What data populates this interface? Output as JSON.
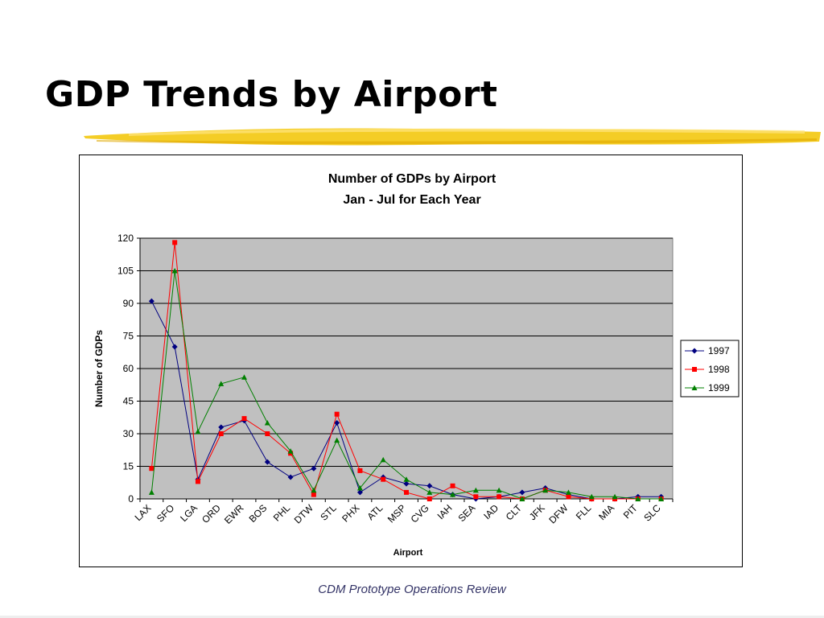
{
  "slide": {
    "title": "GDP Trends by Airport",
    "footer": "CDM Prototype Operations Review"
  },
  "colors": {
    "plot_bg": "#c0c0c0",
    "highlight": "#f2c400",
    "series": [
      "#000080",
      "#ff0000",
      "#008000"
    ]
  },
  "chart_data": {
    "type": "line",
    "title": "Number of GDPs by Airport",
    "subtitle": "Jan - Jul for Each Year",
    "xlabel": "Airport",
    "ylabel": "Number of GDPs",
    "ylim": [
      0,
      120
    ],
    "yticks": [
      0,
      15,
      30,
      45,
      60,
      75,
      90,
      105,
      120
    ],
    "grid": true,
    "legend": "right",
    "categories": [
      "LAX",
      "SFO",
      "LGA",
      "ORD",
      "EWR",
      "BOS",
      "PHL",
      "DTW",
      "STL",
      "PHX",
      "ATL",
      "MSP",
      "CVG",
      "IAH",
      "SEA",
      "IAD",
      "CLT",
      "JFK",
      "DFW",
      "FLL",
      "MIA",
      "PIT",
      "SLC"
    ],
    "series": [
      {
        "name": "1997",
        "marker": "diamond",
        "values": [
          91,
          70,
          9,
          33,
          36,
          17,
          10,
          14,
          35,
          3,
          10,
          7,
          6,
          2,
          0,
          1,
          3,
          5,
          2,
          0,
          0,
          1,
          1
        ]
      },
      {
        "name": "1998",
        "marker": "square",
        "values": [
          14,
          118,
          8,
          30,
          37,
          30,
          21,
          2,
          39,
          13,
          9,
          3,
          0,
          6,
          1,
          1,
          0,
          4,
          1,
          0,
          0,
          0,
          0
        ]
      },
      {
        "name": "1999",
        "marker": "triangle",
        "values": [
          3,
          105,
          31,
          53,
          56,
          35,
          22,
          4,
          27,
          5,
          18,
          9,
          3,
          2,
          4,
          4,
          0,
          4,
          3,
          1,
          1,
          0,
          0
        ]
      }
    ]
  }
}
